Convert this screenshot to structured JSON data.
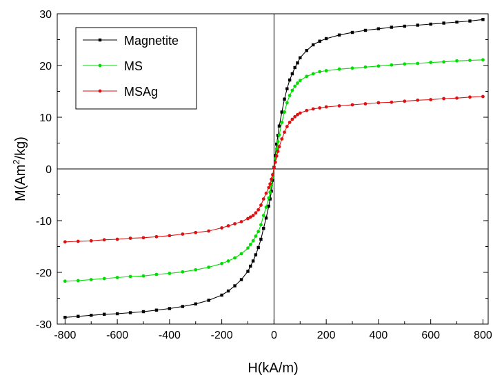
{
  "chart_data": {
    "type": "line",
    "xlabel": "H(kA/m)",
    "ylabel_parts": {
      "main": "M(Am",
      "sup": "2",
      "tail": "/kg)"
    },
    "xlim": [
      -830,
      820
    ],
    "ylim": [
      -30,
      30
    ],
    "xticks": [
      -800,
      -600,
      -400,
      -200,
      0,
      200,
      400,
      600,
      800
    ],
    "yticks": [
      -30,
      -20,
      -10,
      0,
      10,
      20,
      30
    ],
    "grid": false,
    "legend_position": "top-left",
    "series": [
      {
        "name": "Magnetite",
        "color": "#000000",
        "marker": "square",
        "x": [
          -800,
          -750,
          -700,
          -650,
          -600,
          -550,
          -500,
          -450,
          -400,
          -350,
          -300,
          -250,
          -200,
          -175,
          -150,
          -125,
          -100,
          -90,
          -80,
          -70,
          -60,
          -50,
          -40,
          -30,
          -20,
          -15,
          -10,
          -5,
          0,
          5,
          10,
          15,
          20,
          30,
          40,
          50,
          60,
          70,
          80,
          90,
          100,
          125,
          150,
          175,
          200,
          250,
          300,
          350,
          400,
          450,
          500,
          550,
          600,
          650,
          700,
          750,
          800
        ],
        "y": [
          -28.7,
          -28.5,
          -28.3,
          -28.1,
          -28.0,
          -27.8,
          -27.6,
          -27.3,
          -27.0,
          -26.6,
          -26.1,
          -25.4,
          -24.4,
          -23.6,
          -22.6,
          -21.4,
          -19.8,
          -18.8,
          -17.8,
          -16.6,
          -15.2,
          -13.6,
          -11.5,
          -9.5,
          -7.2,
          -5.8,
          -4.3,
          -2.2,
          0.3,
          2.6,
          4.8,
          6.5,
          8.3,
          11.0,
          13.5,
          15.5,
          17.2,
          18.4,
          19.6,
          20.5,
          21.5,
          22.9,
          24.0,
          24.7,
          25.2,
          25.9,
          26.4,
          26.8,
          27.1,
          27.4,
          27.6,
          27.8,
          28.0,
          28.2,
          28.4,
          28.6,
          28.9
        ]
      },
      {
        "name": "MS",
        "color": "#00dd00",
        "marker": "circle",
        "x": [
          -800,
          -750,
          -700,
          -650,
          -600,
          -550,
          -500,
          -450,
          -400,
          -350,
          -300,
          -250,
          -200,
          -175,
          -150,
          -125,
          -100,
          -90,
          -80,
          -70,
          -60,
          -50,
          -40,
          -30,
          -20,
          -15,
          -10,
          -5,
          0,
          5,
          10,
          15,
          20,
          30,
          40,
          50,
          60,
          70,
          80,
          90,
          100,
          125,
          150,
          175,
          200,
          250,
          300,
          350,
          400,
          450,
          500,
          550,
          600,
          650,
          700,
          750,
          800
        ],
        "y": [
          -21.7,
          -21.6,
          -21.4,
          -21.2,
          -21.0,
          -20.8,
          -20.7,
          -20.4,
          -20.2,
          -19.9,
          -19.5,
          -19.0,
          -18.3,
          -17.8,
          -17.2,
          -16.4,
          -15.3,
          -14.6,
          -13.9,
          -13.0,
          -12.1,
          -10.8,
          -9.0,
          -7.4,
          -5.6,
          -4.5,
          -3.2,
          -1.7,
          0.2,
          2.0,
          3.9,
          5.3,
          6.6,
          9.0,
          11.0,
          12.8,
          14.2,
          15.2,
          16.0,
          16.6,
          17.1,
          17.9,
          18.4,
          18.8,
          19.0,
          19.3,
          19.5,
          19.7,
          19.9,
          20.1,
          20.3,
          20.4,
          20.6,
          20.7,
          20.9,
          21.0,
          21.1
        ]
      },
      {
        "name": "MSAg",
        "color": "#dd1111",
        "marker": "circle",
        "x": [
          -800,
          -750,
          -700,
          -650,
          -600,
          -550,
          -500,
          -450,
          -400,
          -350,
          -300,
          -250,
          -200,
          -175,
          -150,
          -125,
          -100,
          -90,
          -80,
          -70,
          -60,
          -50,
          -40,
          -30,
          -20,
          -15,
          -10,
          -5,
          0,
          5,
          10,
          15,
          20,
          30,
          40,
          50,
          60,
          70,
          80,
          90,
          100,
          125,
          150,
          175,
          200,
          250,
          300,
          350,
          400,
          450,
          500,
          550,
          600,
          650,
          700,
          750,
          800
        ],
        "y": [
          -14.1,
          -14.0,
          -13.9,
          -13.7,
          -13.6,
          -13.4,
          -13.3,
          -13.1,
          -12.9,
          -12.6,
          -12.3,
          -12.0,
          -11.4,
          -11.0,
          -10.6,
          -10.2,
          -9.6,
          -9.3,
          -9.0,
          -8.5,
          -7.9,
          -7.0,
          -5.8,
          -4.7,
          -3.6,
          -2.9,
          -2.0,
          -1.1,
          0.2,
          1.3,
          2.5,
          3.4,
          4.3,
          5.8,
          7.1,
          8.2,
          9.0,
          9.6,
          10.1,
          10.5,
          10.8,
          11.3,
          11.6,
          11.8,
          12.0,
          12.2,
          12.4,
          12.6,
          12.8,
          12.9,
          13.1,
          13.3,
          13.4,
          13.6,
          13.7,
          13.9,
          14.0
        ]
      }
    ]
  }
}
